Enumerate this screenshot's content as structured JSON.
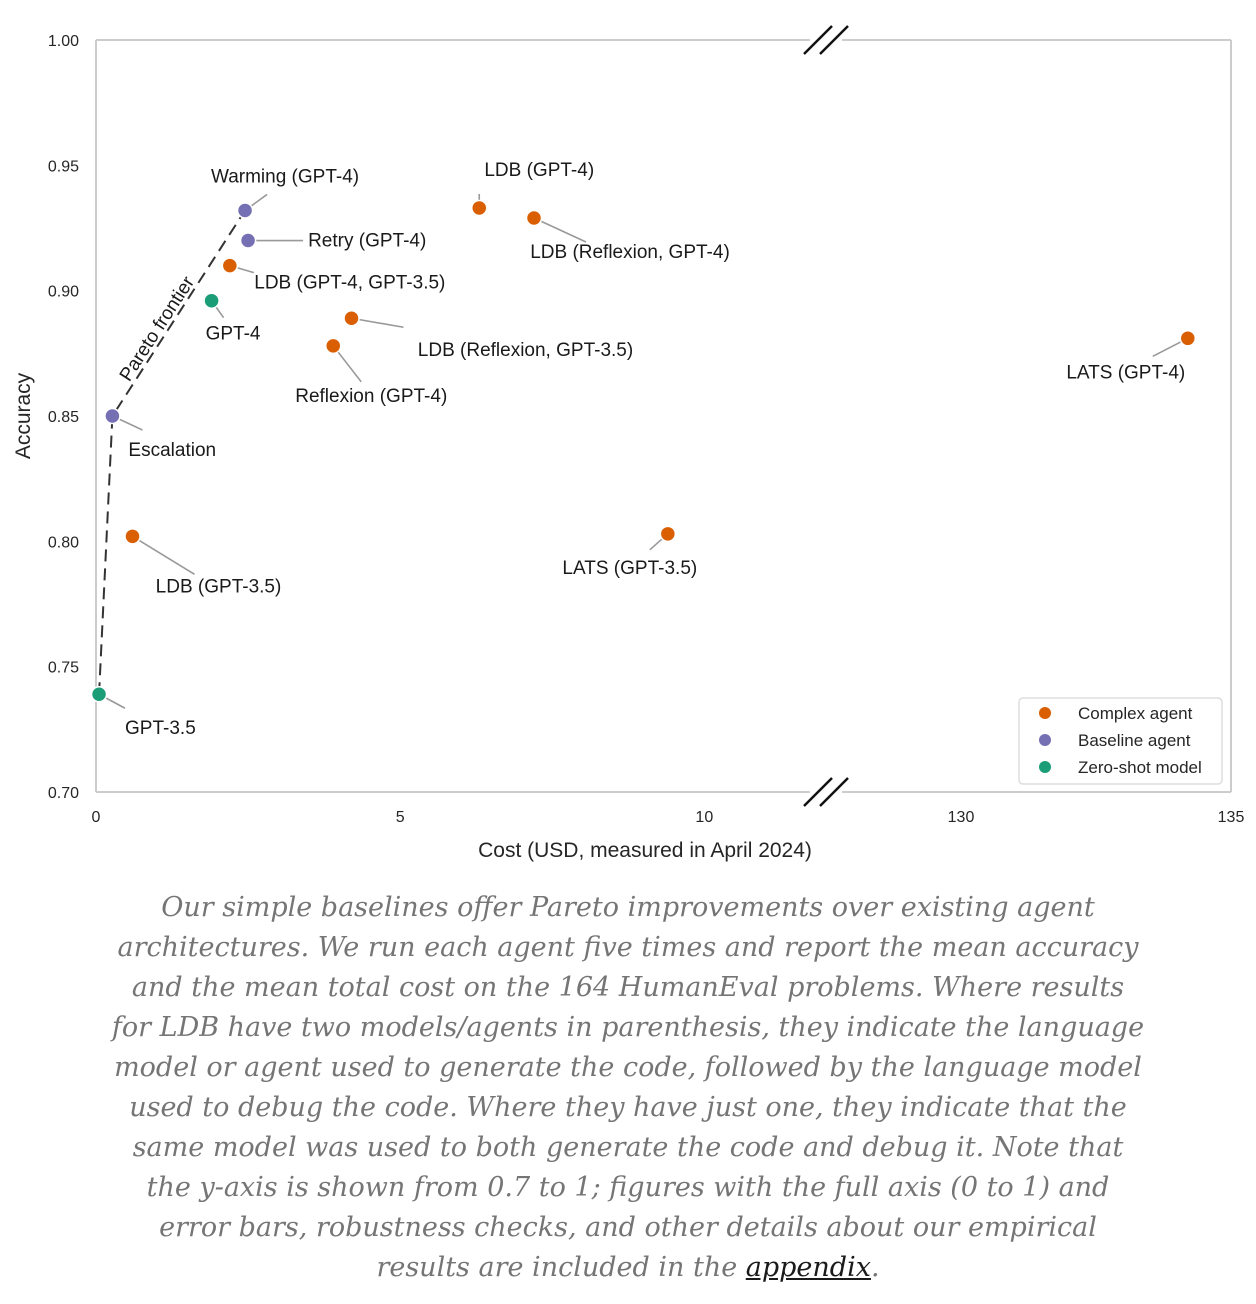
{
  "chart_data": {
    "type": "scatter",
    "xlabel": "Cost (USD, measured in April 2024)",
    "ylabel": "Accuracy",
    "ylim": [
      0.7,
      1.0
    ],
    "x_axis_segments": [
      {
        "range": [
          0,
          12
        ],
        "ticks": [
          0,
          5,
          10
        ]
      },
      {
        "range": [
          127.5,
          135
        ],
        "ticks": [
          130,
          135
        ]
      }
    ],
    "yticks": [
      "0.70",
      "0.75",
      "0.80",
      "0.85",
      "0.90",
      "0.95",
      "1.00"
    ],
    "grid": false,
    "axis_break": true,
    "legend_position": "bottom-right",
    "series": [
      {
        "name": "Complex agent",
        "color": "#d95f02",
        "points": [
          {
            "label": "LDB (GPT-4)",
            "x": 6.3,
            "y": 0.933
          },
          {
            "label": "LDB (Reflexion, GPT-4)",
            "x": 7.2,
            "y": 0.929
          },
          {
            "label": "LDB (GPT-4, GPT-3.5)",
            "x": 2.2,
            "y": 0.91
          },
          {
            "label": "LDB (Reflexion, GPT-3.5)",
            "x": 4.2,
            "y": 0.889
          },
          {
            "label": "Reflexion (GPT-4)",
            "x": 3.9,
            "y": 0.878
          },
          {
            "label": "LDB (GPT-3.5)",
            "x": 0.6,
            "y": 0.802
          },
          {
            "label": "LATS (GPT-3.5)",
            "x": 9.4,
            "y": 0.803
          },
          {
            "label": "LATS (GPT-4)",
            "x": 134.2,
            "y": 0.881
          }
        ]
      },
      {
        "name": "Baseline agent",
        "color": "#7570b3",
        "points": [
          {
            "label": "Warming (GPT-4)",
            "x": 2.45,
            "y": 0.932
          },
          {
            "label": "Retry (GPT-4)",
            "x": 2.5,
            "y": 0.92
          },
          {
            "label": "Escalation",
            "x": 0.27,
            "y": 0.85
          }
        ]
      },
      {
        "name": "Zero-shot model",
        "color": "#1b9e77",
        "points": [
          {
            "label": "GPT-4",
            "x": 1.9,
            "y": 0.896
          },
          {
            "label": "GPT-3.5",
            "x": 0.05,
            "y": 0.739
          }
        ]
      }
    ],
    "pareto_frontier": {
      "label": "Pareto frontier",
      "points": [
        [
          0.05,
          0.739
        ],
        [
          0.27,
          0.85
        ],
        [
          2.45,
          0.932
        ]
      ]
    }
  },
  "caption": {
    "text": "Our simple baselines offer Pareto improvements over existing agent architectures. We run each agent five times and report the mean accuracy and the mean total cost on the 164 HumanEval problems. Where results for LDB have two models/agents in parenthesis, they indicate the language model or agent used to generate the code, followed by the language model used to debug the code. Where they have just one, they indicate that the same model was used to both generate the code and debug it. Note that the y-axis is shown from 0.7 to 1; figures with the full axis (0 to 1) and error bars, robustness checks, and other details about our empirical results are included in the ",
    "link_text": "appendix",
    "end": "."
  }
}
